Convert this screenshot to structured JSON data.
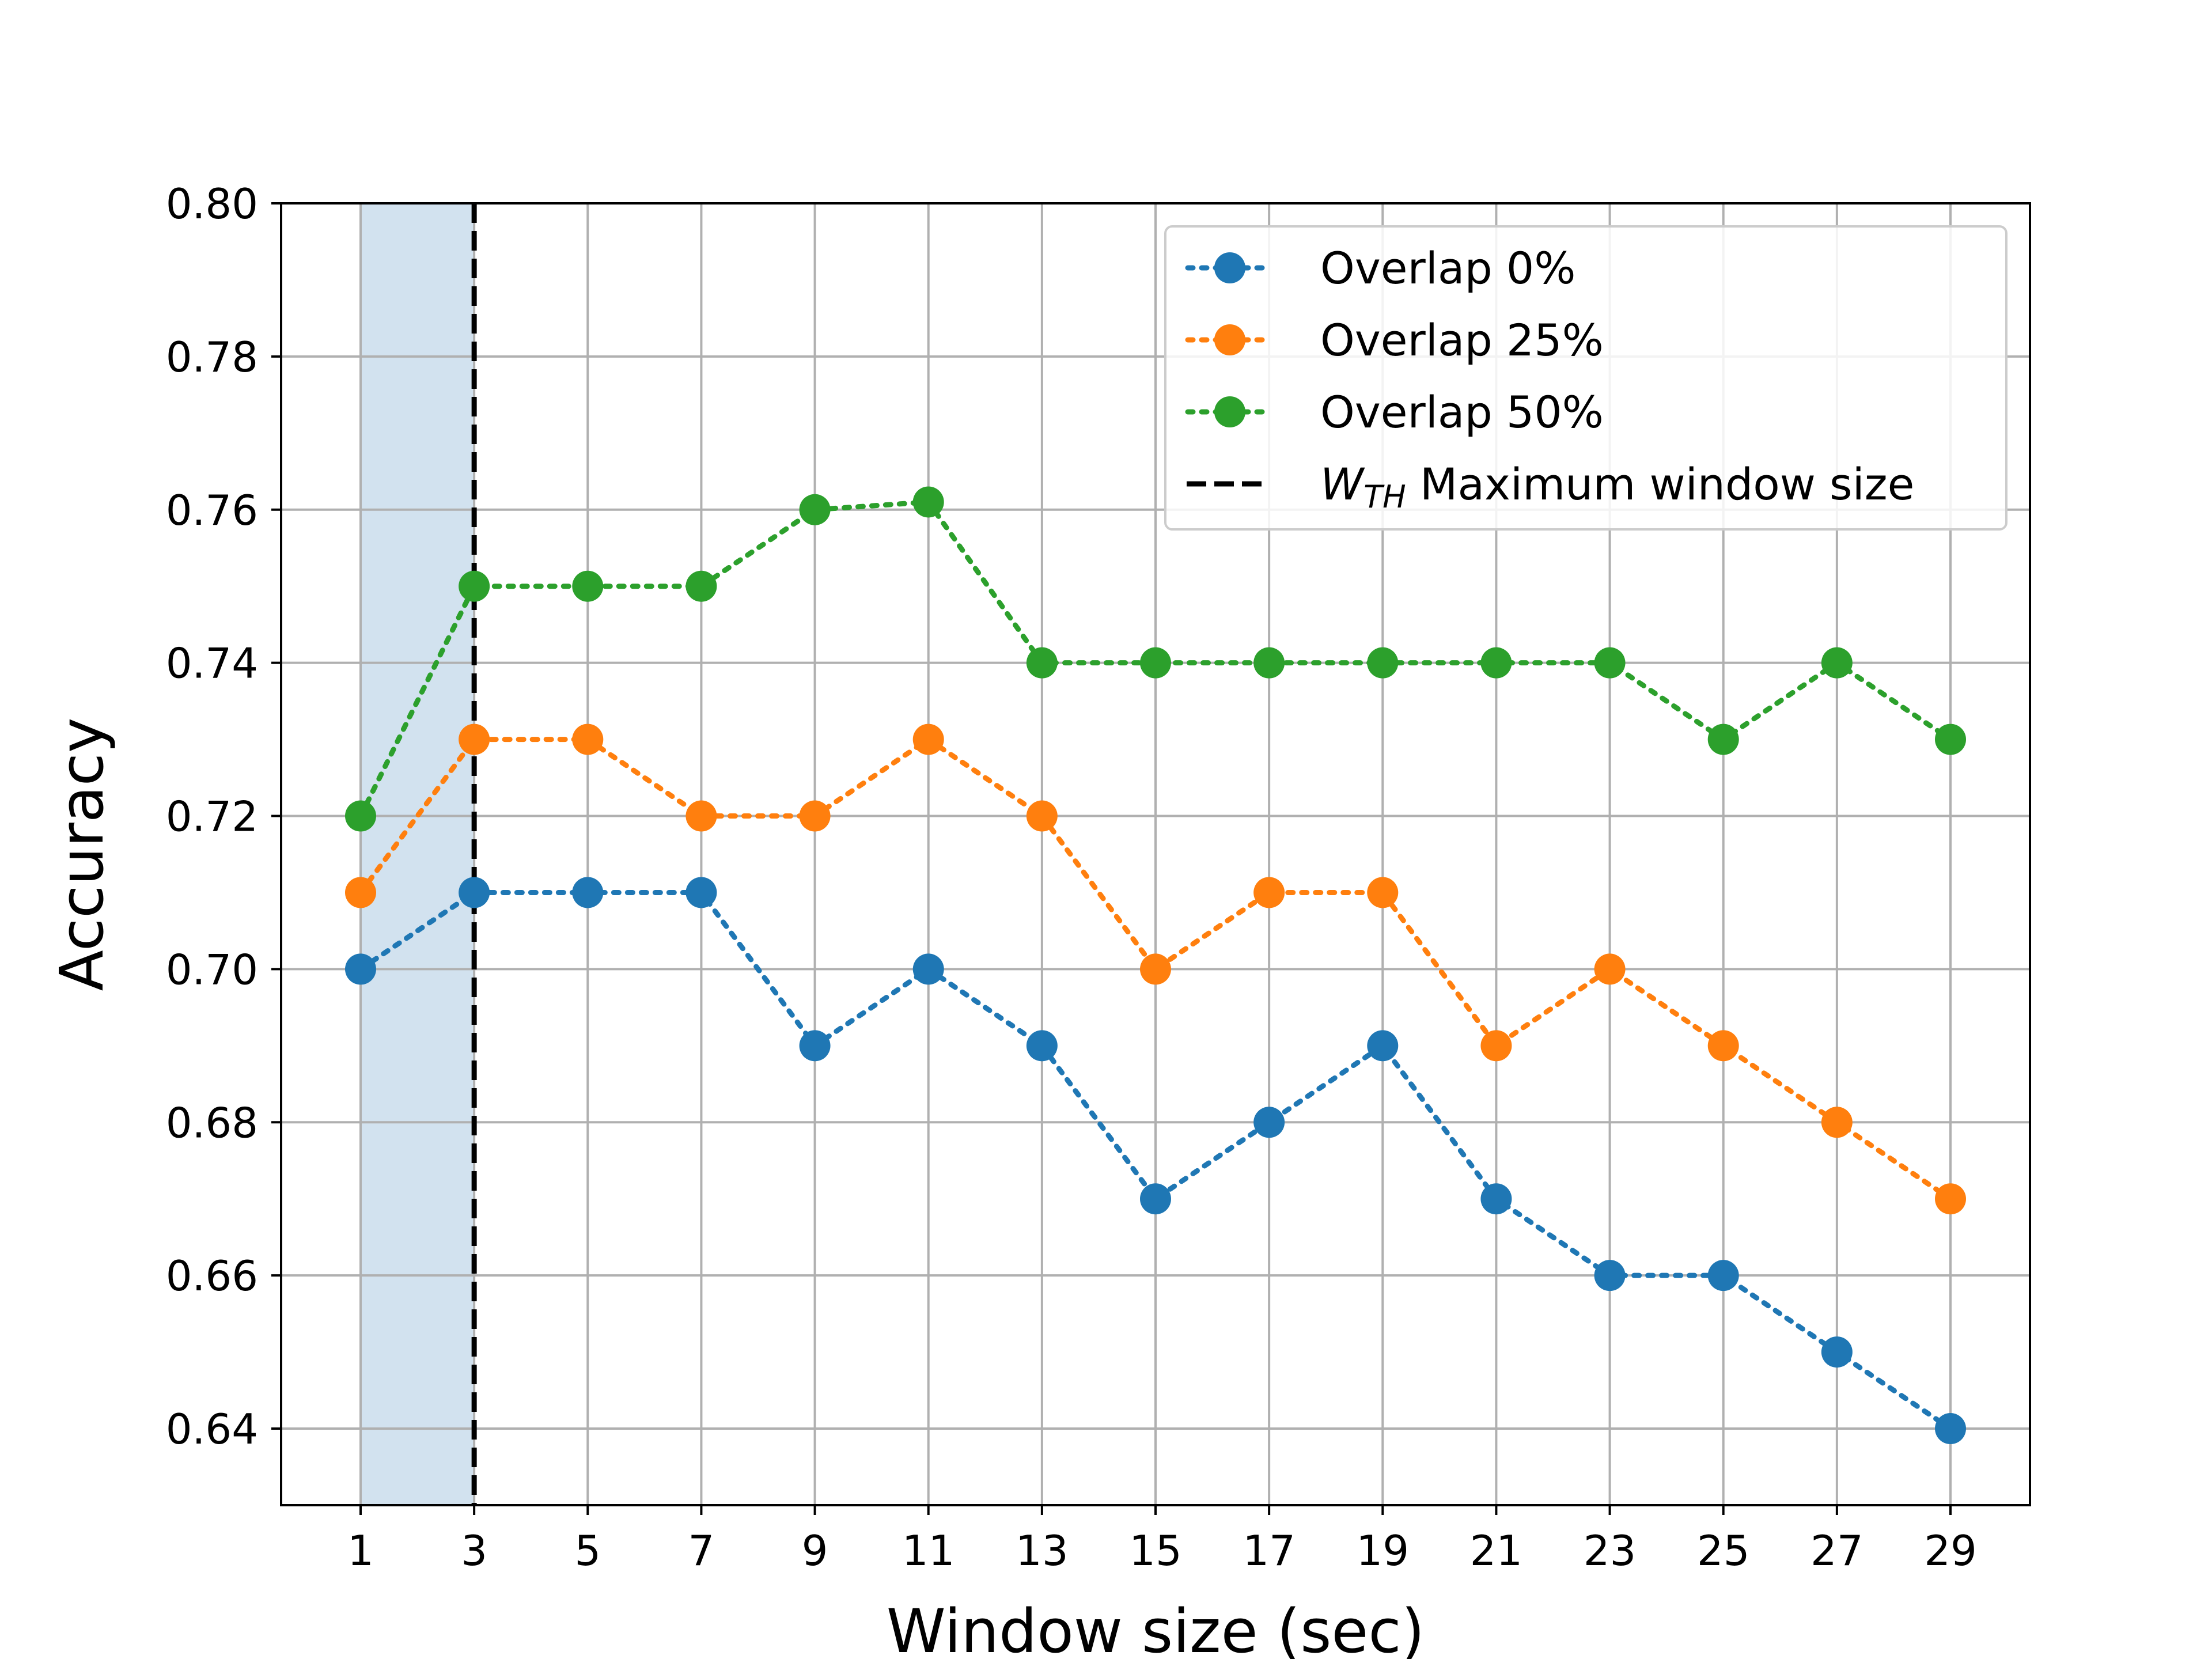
{
  "chart_data": {
    "type": "line",
    "title": "",
    "xlabel": "Window size (sec)",
    "ylabel": "Accuracy",
    "x": [
      1,
      3,
      5,
      7,
      9,
      11,
      13,
      15,
      17,
      19,
      21,
      23,
      25,
      27,
      29
    ],
    "xticks": [
      "1",
      "3",
      "5",
      "7",
      "9",
      "11",
      "13",
      "15",
      "17",
      "19",
      "21",
      "23",
      "25",
      "27",
      "29"
    ],
    "yticks": [
      "0.64",
      "0.66",
      "0.68",
      "0.70",
      "0.72",
      "0.74",
      "0.76",
      "0.78",
      "0.80"
    ],
    "xlim": [
      -0.4,
      30.4
    ],
    "ylim": [
      0.63,
      0.8
    ],
    "grid": true,
    "legend_position": "upper right",
    "series": [
      {
        "name": "Overlap 0%",
        "color": "#1f77b4",
        "linestyle": "dotted",
        "marker": "circle",
        "values": [
          0.7,
          0.71,
          0.71,
          0.71,
          0.69,
          0.7,
          0.69,
          0.67,
          0.68,
          0.69,
          0.67,
          0.66,
          0.66,
          0.65,
          0.64
        ]
      },
      {
        "name": "Overlap 25%",
        "color": "#ff7f0e",
        "linestyle": "dotted",
        "marker": "circle",
        "values": [
          0.71,
          0.73,
          0.73,
          0.72,
          0.72,
          0.73,
          0.72,
          0.7,
          0.71,
          0.71,
          0.69,
          0.7,
          0.69,
          0.68,
          0.67
        ]
      },
      {
        "name": "Overlap 50%",
        "color": "#2ca02c",
        "linestyle": "dotted",
        "marker": "circle",
        "values": [
          0.72,
          0.75,
          0.75,
          0.75,
          0.76,
          0.761,
          0.74,
          0.74,
          0.74,
          0.74,
          0.74,
          0.74,
          0.73,
          0.74,
          0.73
        ]
      }
    ],
    "vline": {
      "x": 3,
      "color": "#000000",
      "linestyle": "dashed",
      "label_symbol": "W",
      "label_subscript": "TH",
      "label_text": " Maximum window size"
    },
    "shaded_region": {
      "x_start": 1,
      "x_end": 3,
      "color": "#d2e2ef"
    }
  }
}
